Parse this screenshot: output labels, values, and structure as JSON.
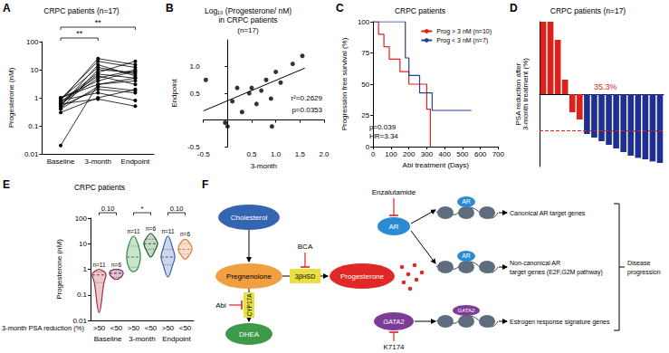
{
  "chart_data": [
    {
      "panel": "A",
      "type": "line",
      "title": "CRPC patients (n=17)",
      "y_label": "Progesterone (nM)",
      "categories": [
        "Baseline",
        "3-month",
        "Endpoint"
      ],
      "log": "y",
      "ylim": [
        0.01,
        100
      ],
      "yticks": [
        0.01,
        0.1,
        1,
        10,
        100
      ],
      "color": "#000000",
      "marker": "circle",
      "series": [
        {
          "values": [
            0.02,
            3,
            5
          ]
        },
        {
          "values": [
            0.3,
            1,
            2
          ]
        },
        {
          "values": [
            0.4,
            10,
            8
          ]
        },
        {
          "values": [
            0.5,
            2,
            1.5
          ]
        },
        {
          "values": [
            0.6,
            5,
            10
          ]
        },
        {
          "values": [
            0.7,
            8,
            20
          ]
        },
        {
          "values": [
            0.8,
            1.5,
            0.8
          ]
        },
        {
          "values": [
            0.9,
            20,
            12
          ]
        },
        {
          "values": [
            1,
            3,
            4
          ]
        },
        {
          "values": [
            0.5,
            15,
            6
          ]
        },
        {
          "values": [
            0.6,
            0.9,
            0.5
          ]
        },
        {
          "values": [
            0.7,
            6,
            3
          ]
        },
        {
          "values": [
            0.8,
            25,
            15
          ]
        },
        {
          "values": [
            1,
            4,
            9
          ]
        },
        {
          "values": [
            0.9,
            12,
            7
          ]
        },
        {
          "values": [
            0.4,
            2.5,
            1.8
          ]
        },
        {
          "values": [
            0.6,
            7,
            5
          ]
        }
      ],
      "annotations": [
        {
          "text": "**",
          "from": "Baseline",
          "to": "3-month"
        },
        {
          "text": "**",
          "from": "Baseline",
          "to": "Endpoint"
        }
      ]
    },
    {
      "panel": "B",
      "type": "scatter",
      "title": "Log₁₀ (Progesterone/ nM)\nin CRPC patients",
      "subtitle": "(n=17)",
      "x_label": "3-month",
      "y_label": "Endpoint",
      "xlim": [
        -0.5,
        2
      ],
      "xticks": [
        -0.5,
        0.5,
        {
          "value": 1,
          "label": "1.0"
        },
        1.5,
        {
          "value": 2,
          "label": "2.0"
        }
      ],
      "ylim": [
        -0.5,
        1.5
      ],
      "yticks": [
        -0.5,
        0.5,
        {
          "value": 1,
          "label": "1.0"
        }
      ],
      "color": "#000000",
      "marker": "circle",
      "x": [
        -0.45,
        -0.05,
        0.0,
        0.1,
        0.2,
        0.3,
        0.45,
        0.5,
        0.6,
        0.7,
        0.8,
        0.9,
        0.92,
        1.0,
        1.1,
        1.35,
        1.55
      ],
      "values": [
        0.75,
        -0.05,
        -0.12,
        0.35,
        0.6,
        0.15,
        0.5,
        0.6,
        0.3,
        0.55,
        0.75,
        0.4,
        -0.12,
        0.9,
        0.7,
        1.05,
        1.2
      ],
      "fit_line": {
        "x": [
          -0.5,
          1.6
        ],
        "values": [
          0.17,
          0.97
        ]
      },
      "annotations": [
        "r²=0.2629",
        "p=0.0353"
      ]
    },
    {
      "panel": "C",
      "type": "line",
      "line_style": "step",
      "title": "CRPC patients",
      "x_label": "Abi treatment (Days)",
      "y_label": "Progression free survival (%)",
      "xlim": [
        0,
        700
      ],
      "xticks": [
        0,
        100,
        200,
        300,
        400,
        500,
        600,
        700
      ],
      "ylim": [
        0,
        100
      ],
      "yticks": [
        0,
        25,
        50,
        75,
        100
      ],
      "legend": "upper right",
      "series": [
        {
          "name": "Prog > 3 nM (n=10)",
          "color": "#e0201b",
          "x": [
            0,
            30,
            60,
            90,
            150,
            200,
            260,
            300,
            320
          ],
          "values": [
            100,
            90,
            80,
            70,
            60,
            50,
            50,
            30,
            0
          ]
        },
        {
          "name": "Prog < 3 nM (n=7)",
          "color": "#2a3f9a",
          "x": [
            0,
            180,
            200,
            260,
            330,
            550
          ],
          "values": [
            100,
            71,
            57,
            43,
            29,
            29
          ]
        }
      ],
      "annotations": [
        "p=0.039",
        "HR=3.34"
      ]
    },
    {
      "panel": "D",
      "type": "bar",
      "title": "CRPC patients (n=17)",
      "y_label": "PSA reduction after\n3-month treatment (%)",
      "ylim": [
        -100,
        100
      ],
      "tick_labels": false,
      "values": [
        100,
        100,
        75,
        20,
        -25,
        -35,
        -55,
        -60,
        -65,
        -70,
        -75,
        -80,
        -85,
        -88,
        -90,
        -93,
        -95
      ],
      "colors": [
        "#e0201b",
        "#e0201b",
        "#e0201b",
        "#e0201b",
        "#e0201b",
        "#e0201b",
        "#1f2f8f",
        "#1f2f8f",
        "#1f2f8f",
        "#1f2f8f",
        "#1f2f8f",
        "#1f2f8f",
        "#1f2f8f",
        "#1f2f8f",
        "#1f2f8f",
        "#1f2f8f",
        "#1f2f8f"
      ],
      "reference_line": -50,
      "annotation": "35.3%"
    },
    {
      "panel": "E",
      "type": "violin",
      "title": "CRPC patients",
      "y_label": "Progesterone (nM)",
      "x_label": "3-month PSA reduction (%)",
      "log": "y",
      "ylim": [
        0.01,
        100
      ],
      "yticks": [
        0.01,
        0.1,
        1,
        10,
        100
      ],
      "categories": [
        ">50",
        "<50",
        ">50",
        "<50",
        ">50",
        "<50"
      ],
      "groups": [
        "Baseline",
        "3-month",
        "Endpoint"
      ],
      "colors": [
        "#a0303a",
        "#7a2a4a",
        "#2e8b3e",
        "#1b5e20",
        "#3a5fa8",
        "#e07b39"
      ],
      "min": [
        0.02,
        0.4,
        0.8,
        3,
        0.5,
        2.5
      ],
      "q1": [
        0.3,
        0.5,
        1.2,
        6,
        1.5,
        4
      ],
      "median": [
        0.6,
        0.7,
        3,
        10,
        3,
        6
      ],
      "q3": [
        0.8,
        0.9,
        8,
        15,
        6,
        10
      ],
      "max": [
        1,
        1,
        20,
        25,
        20,
        15
      ],
      "n_labels": [
        "n=11",
        "n=6",
        "n=11",
        "n=6",
        "n=11",
        "n=6"
      ],
      "comparisons": [
        "0.10",
        "*",
        "0.10"
      ]
    }
  ],
  "diagram": {
    "panel": "F",
    "cholesterol": "Cholesterol",
    "pregnenolone": "Pregnenolone",
    "dhea": "DHEA",
    "progesterone": "Progesterone",
    "enzyme_1": "3βHSD",
    "enzyme_2": "CYP17A",
    "receptor_1": "AR",
    "receptor_2": "GATA2",
    "inhibitors": {
      "abi": "Abi",
      "bca": "BCA",
      "enzalutamide": "Enzalutamide",
      "k7174": "K7174"
    },
    "outcomes": [
      "Canonical AR target genes",
      "Non-canonical AR\ntarget genes (E2F,G2M pathway)",
      "Estrogen response signature genes"
    ],
    "result": "Disease progression"
  }
}
